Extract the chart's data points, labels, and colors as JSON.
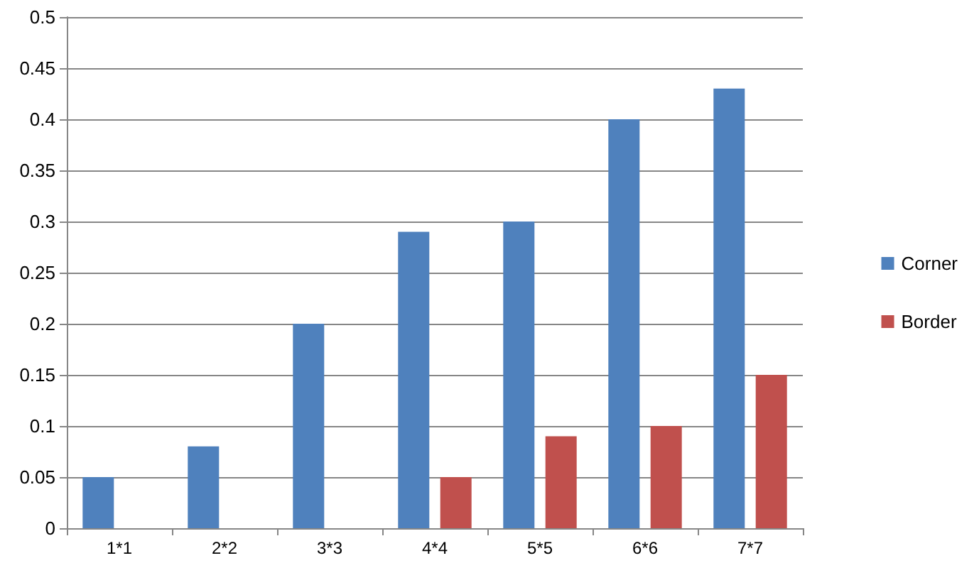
{
  "chart_data": {
    "type": "bar",
    "categories": [
      "1*1",
      "2*2",
      "3*3",
      "4*4",
      "5*5",
      "6*6",
      "7*7"
    ],
    "series": [
      {
        "name": "Corner",
        "color": "#4f81bd",
        "values": [
          0.05,
          0.08,
          0.2,
          0.29,
          0.3,
          0.4,
          0.43
        ]
      },
      {
        "name": "Border",
        "color": "#c0504d",
        "values": [
          0,
          0,
          0,
          0.05,
          0.09,
          0.1,
          0.15
        ]
      }
    ],
    "ylim": [
      0,
      0.5
    ],
    "yticks": [
      0,
      0.05,
      0.1,
      0.15,
      0.2,
      0.25,
      0.3,
      0.35,
      0.4,
      0.45,
      0.5
    ],
    "grid": "y",
    "legend": "right"
  }
}
